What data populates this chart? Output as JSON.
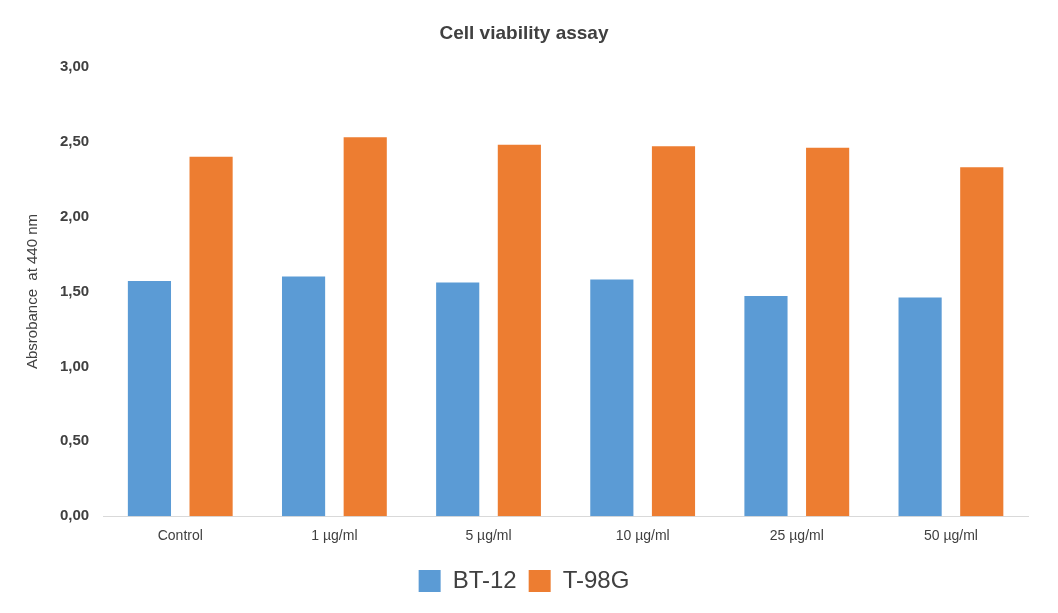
{
  "chart_data": {
    "type": "bar",
    "title": "Cell viability assay",
    "ylabel": "Absrobance  at 440 nm",
    "categories": [
      "Control",
      "1 µg/ml",
      "5 µg/ml",
      "10 µg/ml",
      "25 µg/ml",
      "50 µg/ml"
    ],
    "series": [
      {
        "name": "BT-12",
        "color": "#5b9bd5",
        "values": [
          1.57,
          1.6,
          1.56,
          1.58,
          1.47,
          1.46
        ]
      },
      {
        "name": "T-98G",
        "color": "#ed7d31",
        "values": [
          2.4,
          2.53,
          2.48,
          2.47,
          2.46,
          2.33
        ]
      }
    ],
    "ylim": [
      0,
      3
    ],
    "yticks": [
      {
        "value": 0,
        "label": "0,00"
      },
      {
        "value": 0.5,
        "label": "0,50"
      },
      {
        "value": 1,
        "label": "1,00"
      },
      {
        "value": 1.5,
        "label": "1,50"
      },
      {
        "value": 2,
        "label": "2,00"
      },
      {
        "value": 2.5,
        "label": "2,50"
      },
      {
        "value": 3,
        "label": "3,00"
      }
    ],
    "grid": false,
    "legend": "bottom"
  }
}
